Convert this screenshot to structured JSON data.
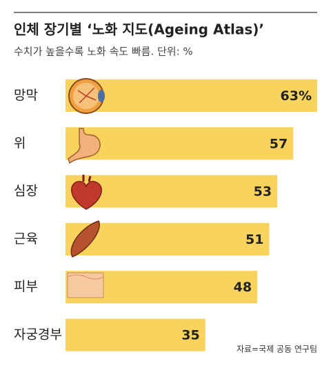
{
  "chart_data": {
    "type": "bar",
    "orientation": "horizontal",
    "title": "인체 장기별 ‘노화 지도(Ageing Atlas)’",
    "subtitle": "수치가 높을수록 노화 속도 빠름. 단위: %",
    "categories": [
      "망막",
      "위",
      "심장",
      "근육",
      "피부",
      "자궁경부"
    ],
    "values": [
      63,
      57,
      53,
      51,
      48,
      35
    ],
    "value_labels": [
      "63%",
      "57",
      "53",
      "51",
      "48",
      "35"
    ],
    "color": "#f8d35e",
    "source": "자료=국제 공동 연구팀"
  }
}
